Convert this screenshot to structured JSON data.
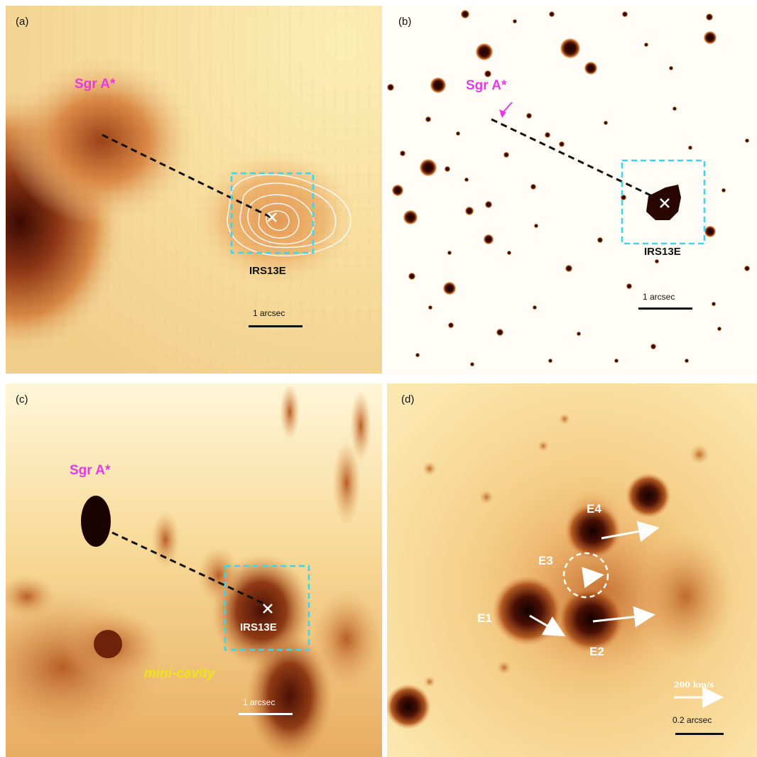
{
  "panels": {
    "a": {
      "label": "(a)",
      "sgr": "Sgr A*",
      "irs": "IRS13E",
      "scale": "1 arcsec"
    },
    "b": {
      "label": "(b)",
      "sgr": "Sgr A*",
      "irs": "IRS13E",
      "scale": "1 arcsec"
    },
    "c": {
      "label": "(c)",
      "sgr": "Sgr A*",
      "irs": "IRS13E",
      "scale": "1 arcsec",
      "region": "mini-cavity"
    },
    "d": {
      "label": "(d)",
      "sources": [
        "E1",
        "E2",
        "E3",
        "E4"
      ],
      "velocity": "200 km/s",
      "scale": "0.2 arcsec"
    }
  },
  "colors": {
    "sgr_label": "#e838e8",
    "box": "#3ad6f0",
    "mini_cavity": "#f2e21a",
    "colormap": [
      "#fffbe8",
      "#fbe6a6",
      "#f2b365",
      "#d67d3a",
      "#8f3a14",
      "#3d0a02"
    ]
  }
}
